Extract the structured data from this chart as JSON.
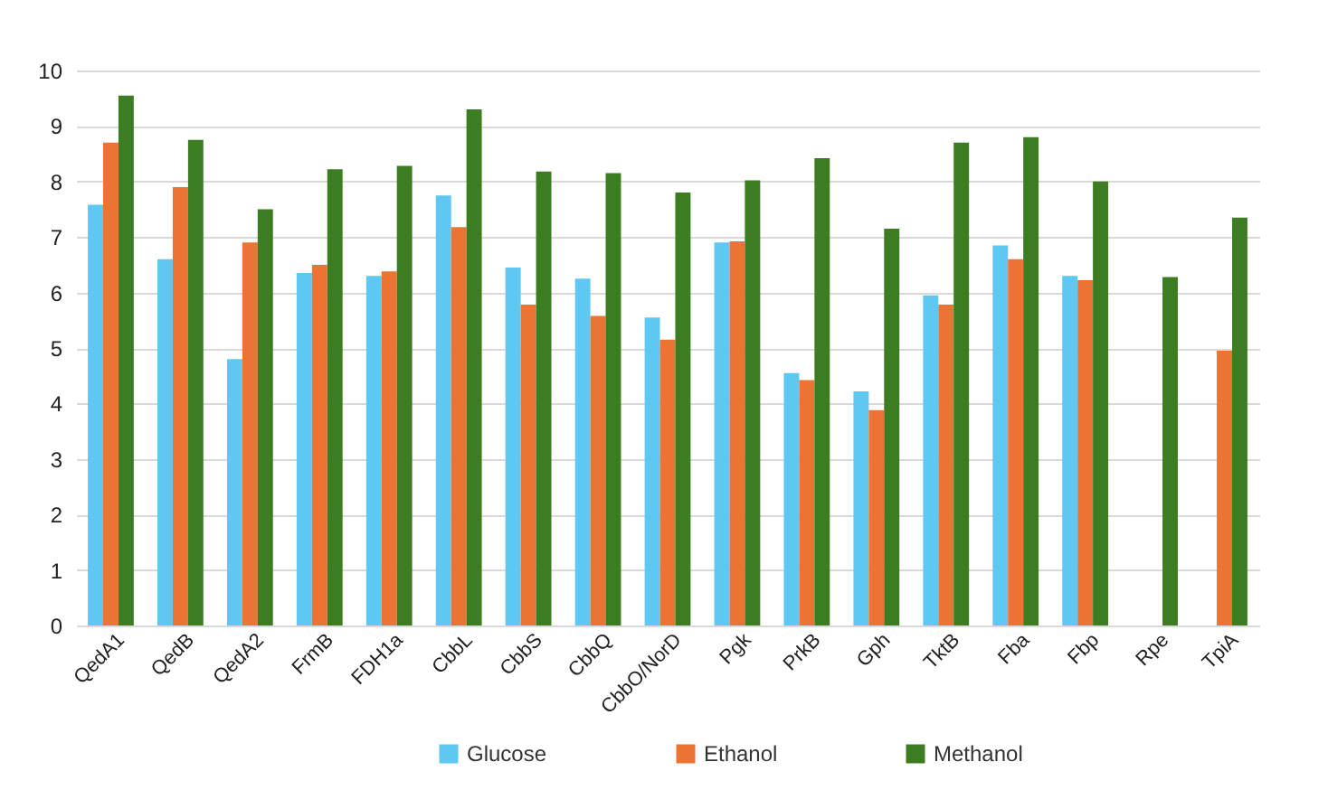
{
  "chart_data": {
    "type": "bar",
    "categories": [
      "QedA1",
      "QedB",
      "QedA2",
      "FrmB",
      "FDH1a",
      "CbbL",
      "CbbS",
      "CbbQ",
      "CbbO/NorD",
      "Pgk",
      "PrkB",
      "Gph",
      "TktB",
      "Fba",
      "Fbp",
      "Rpe",
      "TpiA"
    ],
    "series": [
      {
        "name": "Glucose",
        "color": "#5ec8f2",
        "values": [
          7.58,
          6.6,
          4.8,
          6.35,
          6.3,
          7.75,
          6.45,
          6.25,
          5.55,
          6.9,
          4.55,
          4.22,
          5.95,
          6.85,
          6.3,
          null,
          null
        ]
      },
      {
        "name": "Ethanol",
        "color": "#eb7434",
        "values": [
          8.7,
          7.9,
          6.9,
          6.5,
          6.38,
          7.18,
          5.78,
          5.58,
          5.15,
          6.92,
          4.42,
          3.88,
          5.78,
          6.6,
          6.22,
          null,
          4.95
        ]
      },
      {
        "name": "Methanol",
        "color": "#3c7d22",
        "values": [
          9.55,
          8.75,
          7.5,
          8.22,
          8.28,
          9.3,
          8.18,
          8.15,
          7.8,
          8.02,
          8.42,
          7.15,
          8.7,
          8.8,
          8.0,
          6.28,
          7.35
        ]
      }
    ],
    "ylim": [
      0,
      10
    ],
    "yticks": [
      0,
      1,
      2,
      3,
      4,
      5,
      6,
      7,
      8,
      9,
      10
    ],
    "grid": "y",
    "legend": "bottom"
  }
}
